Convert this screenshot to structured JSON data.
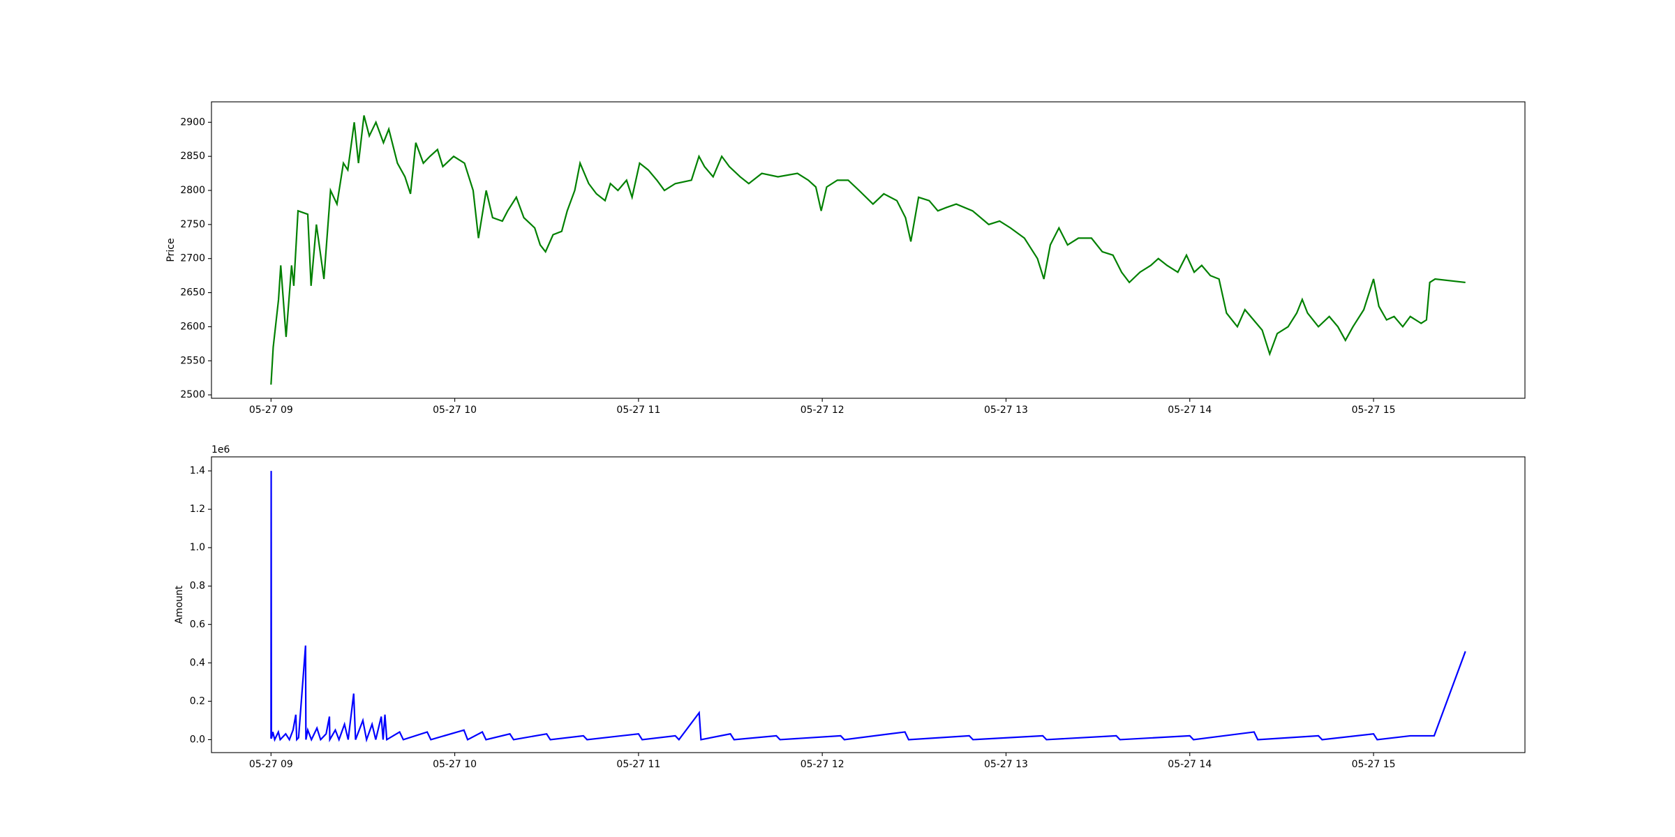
{
  "chart_data": [
    {
      "type": "line",
      "ylabel": "Price",
      "xlim": [
        8.676,
        15.824
      ],
      "xticks": [
        {
          "value": 9,
          "label": "05-27 09"
        },
        {
          "value": 10,
          "label": "05-27 10"
        },
        {
          "value": 11,
          "label": "05-27 11"
        },
        {
          "value": 12,
          "label": "05-27 12"
        },
        {
          "value": 13,
          "label": "05-27 13"
        },
        {
          "value": 14,
          "label": "05-27 14"
        },
        {
          "value": 15,
          "label": "05-27 15"
        }
      ],
      "ylim": [
        2495,
        2930
      ],
      "yticks": [
        2500,
        2550,
        2600,
        2650,
        2700,
        2750,
        2800,
        2850,
        2900
      ],
      "series": [
        {
          "color": "#008000",
          "x": [
            9.0,
            9.012,
            9.041,
            9.053,
            9.082,
            9.112,
            9.124,
            9.147,
            9.2,
            9.218,
            9.247,
            9.288,
            9.324,
            9.359,
            9.394,
            9.418,
            9.453,
            9.476,
            9.506,
            9.535,
            9.571,
            9.612,
            9.641,
            9.688,
            9.729,
            9.759,
            9.788,
            9.829,
            9.865,
            9.906,
            9.935,
            9.994,
            10.053,
            10.1,
            10.129,
            10.171,
            10.206,
            10.259,
            10.288,
            10.335,
            10.376,
            10.435,
            10.465,
            10.494,
            10.535,
            10.582,
            10.612,
            10.653,
            10.682,
            10.729,
            10.771,
            10.818,
            10.847,
            10.888,
            10.935,
            10.965,
            11.006,
            11.053,
            11.1,
            11.141,
            11.2,
            11.288,
            11.329,
            11.359,
            11.406,
            11.453,
            11.494,
            11.553,
            11.6,
            11.671,
            11.759,
            11.865,
            11.924,
            11.965,
            11.994,
            12.024,
            12.082,
            12.141,
            12.2,
            12.276,
            12.335,
            12.406,
            12.453,
            12.482,
            12.524,
            12.582,
            12.629,
            12.676,
            12.729,
            12.818,
            12.906,
            12.965,
            13.024,
            13.1,
            13.171,
            13.206,
            13.241,
            13.288,
            13.335,
            13.394,
            13.465,
            13.524,
            13.582,
            13.629,
            13.671,
            13.729,
            13.788,
            13.829,
            13.876,
            13.935,
            13.982,
            14.024,
            14.065,
            14.112,
            14.159,
            14.2,
            14.259,
            14.3,
            14.347,
            14.394,
            14.435,
            14.476,
            14.535,
            14.582,
            14.612,
            14.641,
            14.7,
            14.759,
            14.806,
            14.847,
            14.888,
            14.947,
            15.0,
            15.029,
            15.071,
            15.112,
            15.159,
            15.2,
            15.259,
            15.288,
            15.306,
            15.335,
            15.5
          ],
          "values": [
            2515,
            2570,
            2640,
            2690,
            2585,
            2690,
            2660,
            2770,
            2765,
            2660,
            2750,
            2670,
            2800,
            2780,
            2840,
            2830,
            2900,
            2840,
            2910,
            2880,
            2900,
            2870,
            2890,
            2840,
            2820,
            2795,
            2870,
            2840,
            2850,
            2860,
            2835,
            2850,
            2840,
            2800,
            2730,
            2800,
            2760,
            2755,
            2770,
            2790,
            2760,
            2745,
            2720,
            2710,
            2735,
            2740,
            2770,
            2800,
            2840,
            2810,
            2795,
            2785,
            2810,
            2800,
            2815,
            2790,
            2840,
            2830,
            2815,
            2800,
            2810,
            2815,
            2850,
            2835,
            2820,
            2850,
            2835,
            2820,
            2810,
            2825,
            2820,
            2825,
            2815,
            2805,
            2770,
            2805,
            2815,
            2815,
            2800,
            2780,
            2795,
            2785,
            2760,
            2725,
            2790,
            2785,
            2770,
            2775,
            2780,
            2770,
            2750,
            2755,
            2745,
            2730,
            2700,
            2670,
            2720,
            2745,
            2720,
            2730,
            2730,
            2710,
            2705,
            2680,
            2665,
            2680,
            2690,
            2700,
            2690,
            2680,
            2705,
            2680,
            2690,
            2675,
            2670,
            2620,
            2600,
            2625,
            2610,
            2595,
            2560,
            2590,
            2600,
            2620,
            2640,
            2620,
            2600,
            2615,
            2600,
            2580,
            2600,
            2625,
            2670,
            2630,
            2610,
            2615,
            2600,
            2615,
            2605,
            2610,
            2665,
            2670,
            2665
          ]
        }
      ]
    },
    {
      "type": "line",
      "ylabel": "Amount",
      "offset_text": "1e6",
      "xlim": [
        8.676,
        15.824
      ],
      "xticks": [
        {
          "value": 9,
          "label": "05-27 09"
        },
        {
          "value": 10,
          "label": "05-27 10"
        },
        {
          "value": 11,
          "label": "05-27 11"
        },
        {
          "value": 12,
          "label": "05-27 12"
        },
        {
          "value": 13,
          "label": "05-27 13"
        },
        {
          "value": 14,
          "label": "05-27 14"
        },
        {
          "value": 15,
          "label": "05-27 15"
        }
      ],
      "ylim": [
        -0.0675,
        1.473
      ],
      "yticks": [
        {
          "value": 0,
          "label": "0.0"
        },
        0.2,
        0.4,
        0.6,
        0.8,
        {
          "value": 1,
          "label": "1.0"
        },
        1.2,
        1.4
      ],
      "series": [
        {
          "color": "#0000ff",
          "x": [
            9.0,
            9.001,
            9.002,
            9.01,
            9.02,
            9.04,
            9.05,
            9.08,
            9.1,
            9.12,
            9.135,
            9.14,
            9.15,
            9.188,
            9.19,
            9.2,
            9.22,
            9.25,
            9.27,
            9.3,
            9.318,
            9.32,
            9.35,
            9.37,
            9.4,
            9.42,
            9.45,
            9.46,
            9.5,
            9.52,
            9.55,
            9.57,
            9.6,
            9.61,
            9.62,
            9.63,
            9.7,
            9.72,
            9.85,
            9.87,
            10.05,
            10.07,
            10.15,
            10.17,
            10.3,
            10.32,
            10.5,
            10.52,
            10.7,
            10.72,
            11.0,
            11.02,
            11.2,
            11.22,
            11.33,
            11.34,
            11.5,
            11.52,
            11.75,
            11.77,
            12.1,
            12.12,
            12.45,
            12.47,
            12.8,
            12.82,
            13.2,
            13.22,
            13.6,
            13.62,
            14.0,
            14.02,
            14.35,
            14.37,
            14.7,
            14.72,
            15.0,
            15.02,
            15.2,
            15.33,
            15.5
          ],
          "values": [
            0.005,
            1.4,
            0.005,
            0.04,
            0.0,
            0.04,
            0.0,
            0.03,
            0.0,
            0.05,
            0.13,
            0.0,
            0.01,
            0.49,
            0.0,
            0.05,
            0.0,
            0.06,
            0.0,
            0.03,
            0.12,
            0.0,
            0.05,
            0.0,
            0.08,
            0.0,
            0.24,
            0.0,
            0.1,
            0.0,
            0.08,
            0.0,
            0.12,
            0.0,
            0.13,
            0.0,
            0.04,
            0.0,
            0.04,
            0.0,
            0.05,
            0.0,
            0.04,
            0.0,
            0.03,
            0.0,
            0.03,
            0.0,
            0.02,
            0.0,
            0.03,
            0.0,
            0.02,
            0.0,
            0.14,
            0.0,
            0.03,
            0.0,
            0.02,
            0.0,
            0.02,
            0.0,
            0.04,
            0.0,
            0.02,
            0.0,
            0.02,
            0.0,
            0.02,
            0.0,
            0.02,
            0.0,
            0.04,
            0.0,
            0.02,
            0.0,
            0.03,
            0.0,
            0.02,
            0.02,
            0.46
          ]
        }
      ]
    }
  ]
}
